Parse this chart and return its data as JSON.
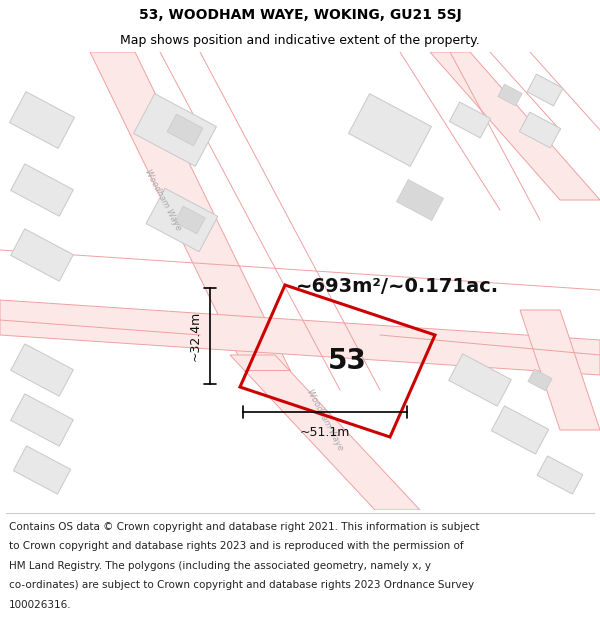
{
  "title_line1": "53, WOODHAM WAYE, WOKING, GU21 5SJ",
  "title_line2": "Map shows position and indicative extent of the property.",
  "footer_lines": [
    "Contains OS data © Crown copyright and database right 2021. This information is subject",
    "to Crown copyright and database rights 2023 and is reproduced with the permission of",
    "HM Land Registry. The polygons (including the associated geometry, namely x, y",
    "co-ordinates) are subject to Crown copyright and database rights 2023 Ordnance Survey",
    "100026316."
  ],
  "area_label": "~693m²/~0.171ac.",
  "width_label": "~51.1m",
  "height_label": "~32.4m",
  "number_label": "53",
  "background_color": "#ffffff",
  "road_outline_color": "#f0a0a0",
  "building_fill": "#e8e8e8",
  "building_outline": "#c8c8c8",
  "property_color": "#cc0000",
  "dim_line_color": "#000000",
  "road_label_color": "#aaaaaa",
  "title_fontsize": 10,
  "subtitle_fontsize": 9,
  "footer_fontsize": 7.5,
  "area_fontsize": 14,
  "number_fontsize": 20,
  "dim_fontsize": 9,
  "road_label_fontsize": 6
}
